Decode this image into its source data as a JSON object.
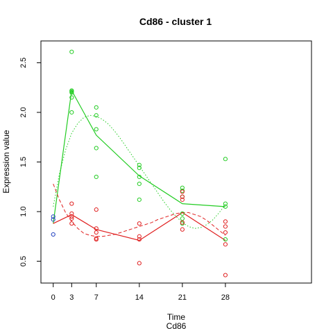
{
  "chart_data": {
    "type": "scatter",
    "title": "Cd86 - cluster 1",
    "xlabel": "Time",
    "sublabel": "Cd86",
    "ylabel": "Expression value",
    "xlim": [
      -2,
      42
    ],
    "ylim": [
      0.28,
      2.72
    ],
    "xticks": [
      0,
      3,
      7,
      14,
      21,
      28
    ],
    "xtick_labels": [
      "0",
      "3",
      "7",
      "14",
      "21",
      "28"
    ],
    "yticks": [
      0.5,
      1.0,
      1.5,
      2.0,
      2.5
    ],
    "ytick_labels": [
      "0.5",
      "1.0",
      "1.5",
      "2.0",
      "2.5"
    ],
    "grid": false,
    "legend": "none",
    "baseline_points": {
      "name": "",
      "color": "#2040c0",
      "points": [
        [
          0,
          0.95
        ],
        [
          0,
          0.92
        ],
        [
          0,
          0.77
        ]
      ]
    },
    "series": [
      {
        "name": "",
        "color": "#22cc22",
        "points": [
          [
            3,
            2.61
          ],
          [
            3,
            2.22
          ],
          [
            3,
            2.21
          ],
          [
            3,
            2.2
          ],
          [
            3,
            2.15
          ],
          [
            3,
            2.0
          ],
          [
            7,
            2.05
          ],
          [
            7,
            1.97
          ],
          [
            7,
            1.83
          ],
          [
            7,
            1.64
          ],
          [
            7,
            1.35
          ],
          [
            14,
            1.47
          ],
          [
            14,
            1.44
          ],
          [
            14,
            1.35
          ],
          [
            14,
            1.28
          ],
          [
            14,
            1.12
          ],
          [
            21,
            1.24
          ],
          [
            21,
            1.21
          ],
          [
            21,
            1.15
          ],
          [
            21,
            0.98
          ],
          [
            21,
            0.93
          ],
          [
            21,
            0.88
          ],
          [
            28,
            1.53
          ],
          [
            28,
            1.08
          ],
          [
            28,
            1.05
          ],
          [
            28,
            0.72
          ]
        ],
        "mean_line": [
          [
            0,
            0.88
          ],
          [
            3,
            2.22
          ],
          [
            7,
            1.77
          ],
          [
            14,
            1.36
          ],
          [
            21,
            1.08
          ],
          [
            28,
            1.05
          ]
        ],
        "smooth_line": [
          [
            0,
            1.05
          ],
          [
            1,
            1.38
          ],
          [
            2,
            1.62
          ],
          [
            3,
            1.79
          ],
          [
            4,
            1.89
          ],
          [
            5,
            1.95
          ],
          [
            6,
            1.97
          ],
          [
            7,
            1.96
          ],
          [
            8,
            1.93
          ],
          [
            9,
            1.88
          ],
          [
            10,
            1.81
          ],
          [
            11,
            1.73
          ],
          [
            12,
            1.64
          ],
          [
            13,
            1.55
          ],
          [
            14,
            1.46
          ],
          [
            15,
            1.37
          ],
          [
            16,
            1.28
          ],
          [
            17,
            1.19
          ],
          [
            18,
            1.1
          ],
          [
            19,
            1.02
          ],
          [
            20,
            0.95
          ],
          [
            21,
            0.89
          ],
          [
            22,
            0.85
          ],
          [
            23,
            0.83
          ],
          [
            24,
            0.84
          ],
          [
            25,
            0.87
          ],
          [
            26,
            0.92
          ],
          [
            27,
            0.99
          ],
          [
            28,
            1.07
          ]
        ]
      },
      {
        "name": "",
        "color": "#e02020",
        "points": [
          [
            3,
            1.08
          ],
          [
            3,
            0.98
          ],
          [
            3,
            0.95
          ],
          [
            3,
            0.93
          ],
          [
            3,
            0.88
          ],
          [
            7,
            1.02
          ],
          [
            7,
            0.83
          ],
          [
            7,
            0.79
          ],
          [
            7,
            0.73
          ],
          [
            7,
            0.72
          ],
          [
            14,
            0.88
          ],
          [
            14,
            0.75
          ],
          [
            14,
            0.72
          ],
          [
            14,
            0.48
          ],
          [
            21,
            1.2
          ],
          [
            21,
            1.15
          ],
          [
            21,
            1.12
          ],
          [
            21,
            0.89
          ],
          [
            21,
            0.82
          ],
          [
            28,
            0.9
          ],
          [
            28,
            0.85
          ],
          [
            28,
            0.79
          ],
          [
            28,
            0.67
          ],
          [
            28,
            0.36
          ]
        ],
        "mean_line": [
          [
            0,
            0.88
          ],
          [
            3,
            0.97
          ],
          [
            7,
            0.82
          ],
          [
            14,
            0.71
          ],
          [
            21,
            0.99
          ],
          [
            28,
            0.71
          ]
        ],
        "smooth_line": [
          [
            0,
            1.28
          ],
          [
            1,
            1.12
          ],
          [
            2,
            0.99
          ],
          [
            3,
            0.9
          ],
          [
            4,
            0.83
          ],
          [
            5,
            0.78
          ],
          [
            6,
            0.76
          ],
          [
            7,
            0.75
          ],
          [
            8,
            0.75
          ],
          [
            9,
            0.76
          ],
          [
            10,
            0.77
          ],
          [
            11,
            0.79
          ],
          [
            12,
            0.81
          ],
          [
            13,
            0.83
          ],
          [
            14,
            0.85
          ],
          [
            15,
            0.87
          ],
          [
            16,
            0.89
          ],
          [
            17,
            0.92
          ],
          [
            18,
            0.94
          ],
          [
            19,
            0.96
          ],
          [
            20,
            0.98
          ],
          [
            21,
            0.99
          ],
          [
            22,
            0.99
          ],
          [
            23,
            0.97
          ],
          [
            24,
            0.95
          ],
          [
            25,
            0.91
          ],
          [
            26,
            0.86
          ],
          [
            27,
            0.81
          ],
          [
            28,
            0.76
          ]
        ]
      }
    ]
  }
}
